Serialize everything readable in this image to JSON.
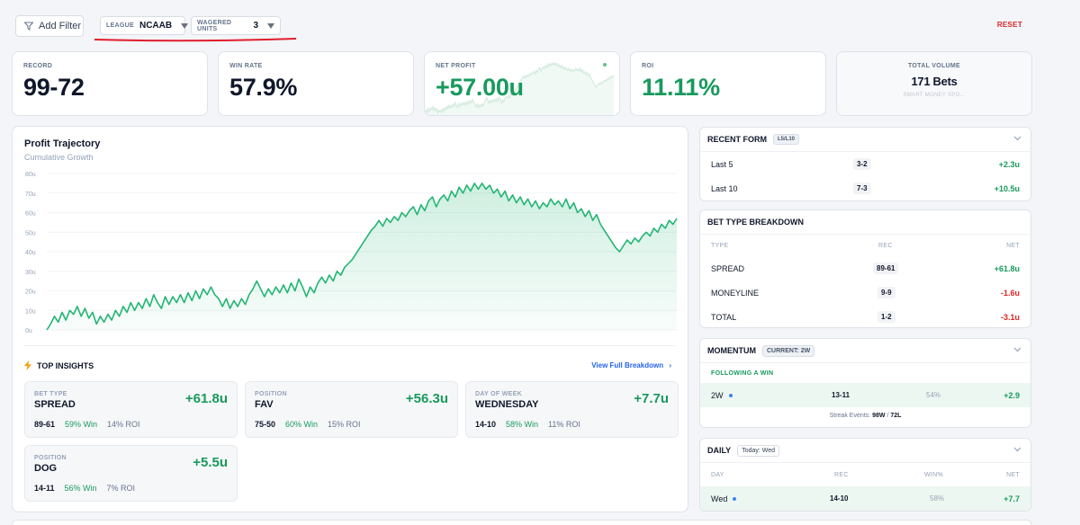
{
  "filters": {
    "add_filter": "Add Filter",
    "league": {
      "key": "LEAGUE",
      "value": "NCAAB"
    },
    "units": {
      "key": "WAGERED UNITS",
      "value": "3"
    },
    "reset": "RESET"
  },
  "stats": {
    "record": {
      "label": "RECORD",
      "value": "99-72"
    },
    "win_rate": {
      "label": "WIN RATE",
      "value": "57.9%"
    },
    "net_profit": {
      "label": "NET PROFIT",
      "value": "+57.00u"
    },
    "roi": {
      "label": "ROI",
      "value": "11.11%"
    },
    "volume": {
      "label": "TOTAL VOLUME",
      "value": "171 Bets",
      "sub": "SMART MONEY SPO..."
    }
  },
  "trajectory": {
    "title": "Profit Trajectory",
    "subtitle": "Cumulative Growth"
  },
  "chart_data": {
    "type": "area",
    "title": "Profit Trajectory",
    "subtitle": "Cumulative Growth",
    "y_ticks": [
      "80u",
      "70u",
      "60u",
      "50u",
      "40u",
      "30u",
      "20u",
      "10u",
      "0u"
    ],
    "ylim": [
      0,
      80
    ],
    "values": [
      0,
      3,
      7,
      4,
      9,
      5,
      10,
      8,
      12,
      7,
      11,
      6,
      9,
      3,
      7,
      4,
      8,
      5,
      10,
      7,
      12,
      9,
      14,
      10,
      14,
      11,
      16,
      12,
      18,
      14,
      11,
      17,
      13,
      17,
      14,
      18,
      14,
      19,
      15,
      20,
      16,
      21,
      18,
      22,
      18,
      16,
      12,
      16,
      11,
      15,
      12,
      16,
      13,
      18,
      21,
      25,
      21,
      17,
      21,
      18,
      22,
      19,
      23,
      19,
      24,
      20,
      26,
      22,
      17,
      22,
      19,
      24,
      27,
      24,
      28,
      25,
      30,
      28,
      32,
      34,
      36,
      39,
      42,
      45,
      48,
      51,
      53,
      56,
      53,
      57,
      55,
      58,
      56,
      60,
      58,
      61,
      63,
      59,
      64,
      61,
      66,
      68,
      63,
      67,
      69,
      66,
      71,
      68,
      73,
      70,
      74,
      71,
      75,
      72,
      75,
      72,
      74,
      70,
      72,
      68,
      71,
      66,
      69,
      65,
      68,
      64,
      67,
      63,
      66,
      62,
      65,
      63,
      67,
      64,
      66,
      63,
      67,
      62,
      65,
      60,
      62,
      58,
      61,
      56,
      59,
      54,
      51,
      48,
      45,
      42,
      40,
      43,
      46,
      44,
      47,
      45,
      48,
      50,
      48,
      52,
      50,
      54,
      52,
      56,
      54,
      57
    ]
  },
  "insights": {
    "header": "TOP INSIGHTS",
    "view_full": "View Full Breakdown",
    "cards": [
      {
        "key": "BET TYPE",
        "title": "SPREAD",
        "net": "+61.8u",
        "rec": "89-61",
        "win": "59% Win",
        "roi": "14% ROI"
      },
      {
        "key": "POSITION",
        "title": "FAV",
        "net": "+56.3u",
        "rec": "75-50",
        "win": "60% Win",
        "roi": "15% ROI"
      },
      {
        "key": "DAY OF WEEK",
        "title": "WEDNESDAY",
        "net": "+7.7u",
        "rec": "14-10",
        "win": "58% Win",
        "roi": "11% ROI"
      },
      {
        "key": "POSITION",
        "title": "DOG",
        "net": "+5.5u",
        "rec": "14-11",
        "win": "56% Win",
        "roi": "7% ROI"
      }
    ]
  },
  "recent_form": {
    "title": "RECENT FORM",
    "tag": "L5/L10",
    "rows": [
      {
        "label": "Last 5",
        "rec": "3-2",
        "net": "+2.3u"
      },
      {
        "label": "Last 10",
        "rec": "7-3",
        "net": "+10.5u"
      }
    ]
  },
  "bet_type": {
    "title": "BET TYPE BREAKDOWN",
    "cols": [
      "TYPE",
      "REC",
      "NET"
    ],
    "rows": [
      {
        "type": "SPREAD",
        "rec": "89-61",
        "net": "+61.8u"
      },
      {
        "type": "MONEYLINE",
        "rec": "9-9",
        "net": "-1.6u"
      },
      {
        "type": "TOTAL",
        "rec": "1-2",
        "net": "-3.1u"
      }
    ]
  },
  "momentum": {
    "title": "MOMENTUM",
    "tag": "CURRENT: 2W",
    "section": "FOLLOWING A WIN",
    "row": {
      "label": "2W",
      "rec": "13-11",
      "pct": "54%",
      "net": "+2.9"
    },
    "streak_label": "Streak Events:",
    "streak_w": "98W",
    "streak_sep": "/",
    "streak_l": "72L"
  },
  "daily": {
    "title": "DAILY",
    "tag": "Today: Wed",
    "cols": [
      "DAY",
      "REC",
      "WIN%",
      "NET"
    ],
    "row": {
      "day": "Wed",
      "rec": "14-10",
      "pct": "58%",
      "net": "+7.7"
    }
  },
  "colors": {
    "accent_green": "#179a5c",
    "negative_red": "#dc2626",
    "link_blue": "#2563eb"
  }
}
